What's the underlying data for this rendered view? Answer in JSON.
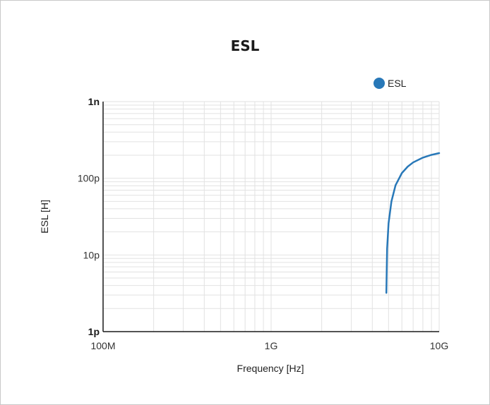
{
  "chart_data": {
    "type": "line",
    "title": "ESL",
    "xlabel": "Frequency [Hz]",
    "ylabel": "ESL [H]",
    "xscale": "log",
    "yscale": "log",
    "xlim": [
      100000000.0,
      10000000000.0
    ],
    "ylim": [
      1e-12,
      1e-09
    ],
    "x_ticks": [
      {
        "value": 100000000.0,
        "label": "100M"
      },
      {
        "value": 1000000000.0,
        "label": "1G"
      },
      {
        "value": 10000000000.0,
        "label": "10G"
      }
    ],
    "y_ticks": [
      {
        "value": 1e-12,
        "label": "1p",
        "bold": true
      },
      {
        "value": 1e-11,
        "label": "10p",
        "bold": false
      },
      {
        "value": 1e-10,
        "label": "100p",
        "bold": false
      },
      {
        "value": 1e-09,
        "label": "1n",
        "bold": true
      }
    ],
    "grid": true,
    "legend_position": "top-right",
    "series": [
      {
        "name": "ESL",
        "color": "#2878b8",
        "x": [
          4850000000.0,
          4900000000.0,
          5000000000.0,
          5200000000.0,
          5500000000.0,
          6000000000.0,
          6500000000.0,
          7000000000.0,
          8000000000.0,
          9000000000.0,
          10000000000.0
        ],
        "y": [
          3.2e-12,
          1.2e-11,
          2.6e-11,
          5e-11,
          8.1e-11,
          1.17e-10,
          1.42e-10,
          1.61e-10,
          1.86e-10,
          2.02e-10,
          2.13e-10
        ]
      }
    ]
  }
}
